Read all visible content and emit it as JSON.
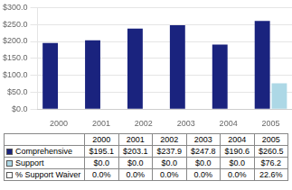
{
  "chart_data": {
    "type": "bar",
    "categories": [
      "2000",
      "2001",
      "2002",
      "2003",
      "2004",
      "2005"
    ],
    "series": [
      {
        "name": "Comprehensive",
        "color": "#1a237e",
        "values": [
          195.1,
          203.1,
          237.9,
          247.8,
          190.6,
          260.5
        ],
        "value_labels": [
          "$195.1",
          "$203.1",
          "$237.9",
          "$247.8",
          "$190.6",
          "$260.5"
        ]
      },
      {
        "name": "Support",
        "color": "#add8e6",
        "values": [
          0.0,
          0.0,
          0.0,
          0.0,
          0.0,
          76.2
        ],
        "value_labels": [
          "$0.0",
          "$0.0",
          "$0.0",
          "$0.0",
          "$0.0",
          "$76.2"
        ]
      }
    ],
    "table_rows": [
      {
        "name": "% Support Waiver",
        "values": [
          0.0,
          0.0,
          0.0,
          0.0,
          0.0,
          22.6
        ],
        "value_labels": [
          "0.0%",
          "0.0%",
          "0.0%",
          "0.0%",
          "0.0%",
          "22.6%"
        ]
      }
    ],
    "ylim": [
      0,
      300
    ],
    "yticks": [
      {
        "value": 0,
        "label": "$0.0"
      },
      {
        "value": 50,
        "label": "$50.0"
      },
      {
        "value": 100,
        "label": "$100.0"
      },
      {
        "value": 150,
        "label": "$150.0"
      },
      {
        "value": 200,
        "label": "$200.0"
      },
      {
        "value": 250,
        "label": "$250.0"
      },
      {
        "value": 300,
        "label": "$300.0"
      }
    ],
    "grid": true
  }
}
